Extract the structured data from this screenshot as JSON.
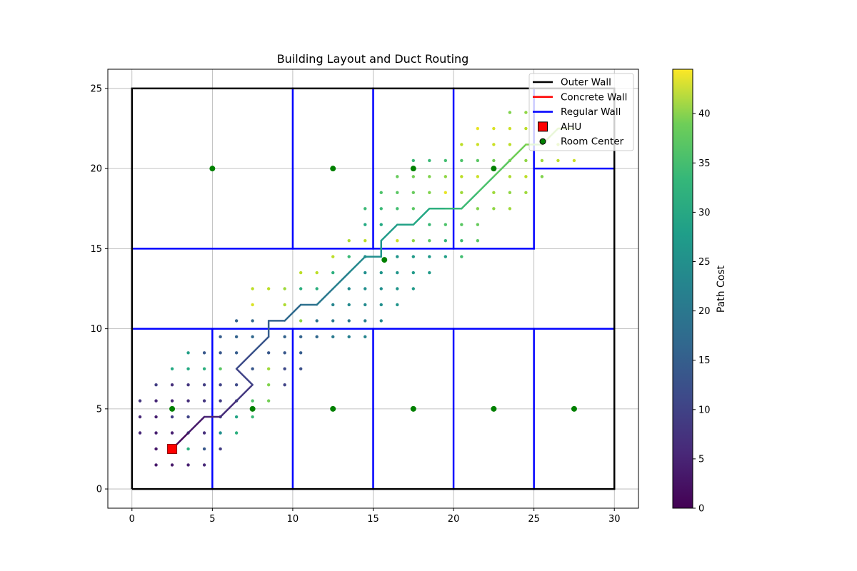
{
  "chart_data": {
    "type": "scatter",
    "title": "Building Layout and Duct Routing",
    "xlabel": "",
    "ylabel": "",
    "xlim": [
      -1.5,
      31.5
    ],
    "ylim": [
      -1.2,
      26.2
    ],
    "xticks": [
      0,
      5,
      10,
      15,
      20,
      25,
      30
    ],
    "yticks": [
      0,
      5,
      10,
      15,
      20,
      25
    ],
    "grid": true,
    "legend_position": "top-right",
    "legend": [
      {
        "label": "Outer Wall",
        "kind": "line",
        "color": "#000000"
      },
      {
        "label": "Concrete Wall",
        "kind": "line",
        "color": "#ff0000"
      },
      {
        "label": "Regular Wall",
        "kind": "line",
        "color": "#0000ff"
      },
      {
        "label": "AHU",
        "kind": "square",
        "color": "#ff0000"
      },
      {
        "label": "Room Center",
        "kind": "circle",
        "color": "#008000"
      }
    ],
    "colorbar": {
      "label": "Path Cost",
      "colormap": "viridis",
      "range": [
        0,
        44.5
      ],
      "ticks": [
        0,
        5,
        10,
        15,
        20,
        25,
        30,
        35,
        40
      ]
    },
    "outer_wall": [
      [
        0,
        0
      ],
      [
        30,
        0
      ],
      [
        30,
        25
      ],
      [
        0,
        25
      ],
      [
        0,
        0
      ]
    ],
    "regular_walls": [
      [
        [
          0,
          15
        ],
        [
          25,
          15
        ]
      ],
      [
        [
          0,
          10
        ],
        [
          30,
          10
        ]
      ],
      [
        [
          25,
          20
        ],
        [
          30,
          20
        ]
      ],
      [
        [
          10,
          15
        ],
        [
          10,
          25
        ]
      ],
      [
        [
          15,
          15
        ],
        [
          15,
          25
        ]
      ],
      [
        [
          20,
          15
        ],
        [
          20,
          25
        ]
      ],
      [
        [
          25,
          15
        ],
        [
          25,
          25
        ]
      ],
      [
        [
          5,
          0
        ],
        [
          5,
          10
        ]
      ],
      [
        [
          10,
          0
        ],
        [
          10,
          10
        ]
      ],
      [
        [
          15,
          0
        ],
        [
          15,
          10
        ]
      ],
      [
        [
          20,
          0
        ],
        [
          20,
          10
        ]
      ],
      [
        [
          25,
          0
        ],
        [
          25,
          10
        ]
      ]
    ],
    "ahu": [
      2.5,
      2.5
    ],
    "room_centers": [
      [
        5,
        20
      ],
      [
        12.5,
        20
      ],
      [
        17.5,
        20
      ],
      [
        22.5,
        20
      ],
      [
        15.7,
        14.3
      ],
      [
        2.5,
        5
      ],
      [
        7.5,
        5
      ],
      [
        12.5,
        5
      ],
      [
        17.5,
        5
      ],
      [
        22.5,
        5
      ],
      [
        27.5,
        5
      ]
    ],
    "path": [
      [
        2.5,
        2.5,
        0
      ],
      [
        3.5,
        3.5,
        2
      ],
      [
        4.5,
        4.5,
        4
      ],
      [
        5.5,
        4.5,
        5
      ],
      [
        6.5,
        5.5,
        6.5
      ],
      [
        7.5,
        6.5,
        8
      ],
      [
        6.5,
        7.5,
        9.5
      ],
      [
        7.5,
        8.5,
        11
      ],
      [
        8.5,
        9.5,
        12.5
      ],
      [
        8.5,
        10.5,
        13.5
      ],
      [
        9.5,
        10.5,
        14.5
      ],
      [
        10.5,
        11.5,
        16
      ],
      [
        11.5,
        11.5,
        17
      ],
      [
        12.5,
        12.5,
        18.5
      ],
      [
        13.5,
        13.5,
        20
      ],
      [
        14.5,
        14.5,
        21.5
      ],
      [
        15.5,
        14.5,
        22.5
      ],
      [
        15.5,
        15.5,
        23.5
      ],
      [
        16.5,
        16.5,
        25
      ],
      [
        17.5,
        16.5,
        26
      ],
      [
        18.5,
        17.5,
        27.5
      ],
      [
        19.5,
        17.5,
        28.5
      ],
      [
        20.5,
        17.5,
        29.5
      ],
      [
        21.5,
        18.5,
        31
      ],
      [
        22.5,
        19.5,
        32.5
      ],
      [
        23.5,
        20.5,
        34
      ],
      [
        24.5,
        21.5,
        35.5
      ],
      [
        25.5,
        21.5,
        36.5
      ],
      [
        26.5,
        22.5,
        38
      ],
      [
        27.5,
        22.5,
        39
      ]
    ],
    "explored": [
      [
        1.5,
        1.5,
        3
      ],
      [
        2.5,
        1.5,
        3
      ],
      [
        3.5,
        1.5,
        4
      ],
      [
        4.5,
        1.5,
        5
      ],
      [
        1.5,
        2.5,
        3
      ],
      [
        3.5,
        2.5,
        28
      ],
      [
        4.5,
        2.5,
        12
      ],
      [
        5.5,
        2.5,
        8
      ],
      [
        0.5,
        3.5,
        5
      ],
      [
        1.5,
        3.5,
        4
      ],
      [
        2.5,
        3.5,
        4
      ],
      [
        3.5,
        3.5,
        12
      ],
      [
        4.5,
        3.5,
        6
      ],
      [
        5.5,
        3.5,
        22
      ],
      [
        6.5,
        3.5,
        28
      ],
      [
        0.5,
        4.5,
        5
      ],
      [
        1.5,
        4.5,
        4
      ],
      [
        2.5,
        4.5,
        8
      ],
      [
        3.5,
        4.5,
        9
      ],
      [
        5.5,
        4.5,
        10
      ],
      [
        6.5,
        4.5,
        26
      ],
      [
        7.5,
        4.5,
        30
      ],
      [
        0.5,
        5.5,
        7
      ],
      [
        1.5,
        5.5,
        5
      ],
      [
        2.5,
        5.5,
        5
      ],
      [
        3.5,
        5.5,
        6
      ],
      [
        4.5,
        5.5,
        7
      ],
      [
        5.5,
        5.5,
        8
      ],
      [
        6.5,
        5.5,
        10
      ],
      [
        7.5,
        5.5,
        32
      ],
      [
        8.5,
        5.5,
        35
      ],
      [
        1.5,
        6.5,
        8
      ],
      [
        2.5,
        6.5,
        6
      ],
      [
        3.5,
        6.5,
        7
      ],
      [
        4.5,
        6.5,
        8
      ],
      [
        5.5,
        6.5,
        9
      ],
      [
        6.5,
        6.5,
        10
      ],
      [
        8.5,
        6.5,
        36
      ],
      [
        9.5,
        6.5,
        9
      ],
      [
        2.5,
        7.5,
        27
      ],
      [
        3.5,
        7.5,
        27
      ],
      [
        4.5,
        7.5,
        28
      ],
      [
        5.5,
        7.5,
        33
      ],
      [
        7.5,
        7.5,
        12
      ],
      [
        8.5,
        7.5,
        38
      ],
      [
        9.5,
        7.5,
        10
      ],
      [
        10.5,
        7.5,
        11
      ],
      [
        3.5,
        8.5,
        25
      ],
      [
        4.5,
        8.5,
        12
      ],
      [
        5.5,
        8.5,
        12
      ],
      [
        6.5,
        8.5,
        13
      ],
      [
        8.5,
        8.5,
        12
      ],
      [
        9.5,
        8.5,
        12
      ],
      [
        10.5,
        8.5,
        13
      ],
      [
        5.5,
        9.5,
        13
      ],
      [
        6.5,
        9.5,
        14
      ],
      [
        7.5,
        9.5,
        15
      ],
      [
        9.5,
        9.5,
        14
      ],
      [
        10.5,
        9.5,
        14
      ],
      [
        11.5,
        9.5,
        15
      ],
      [
        12.5,
        9.5,
        18
      ],
      [
        13.5,
        9.5,
        19
      ],
      [
        14.5,
        9.5,
        20
      ],
      [
        6.5,
        10.5,
        14
      ],
      [
        7.5,
        10.5,
        15
      ],
      [
        10.5,
        10.5,
        37
      ],
      [
        11.5,
        10.5,
        17
      ],
      [
        12.5,
        10.5,
        18
      ],
      [
        13.5,
        10.5,
        18
      ],
      [
        14.5,
        10.5,
        19
      ],
      [
        15.5,
        10.5,
        21
      ],
      [
        7.5,
        11.5,
        42
      ],
      [
        9.5,
        11.5,
        39
      ],
      [
        12.5,
        11.5,
        20
      ],
      [
        13.5,
        11.5,
        21
      ],
      [
        14.5,
        11.5,
        21
      ],
      [
        15.5,
        11.5,
        22
      ],
      [
        16.5,
        11.5,
        23
      ],
      [
        7.5,
        12.5,
        40
      ],
      [
        8.5,
        12.5,
        40
      ],
      [
        9.5,
        12.5,
        38
      ],
      [
        10.5,
        12.5,
        28
      ],
      [
        11.5,
        12.5,
        28
      ],
      [
        13.5,
        12.5,
        21
      ],
      [
        14.5,
        12.5,
        22
      ],
      [
        15.5,
        12.5,
        22
      ],
      [
        16.5,
        12.5,
        23
      ],
      [
        17.5,
        12.5,
        24
      ],
      [
        10.5,
        13.5,
        40
      ],
      [
        11.5,
        13.5,
        40
      ],
      [
        12.5,
        13.5,
        28
      ],
      [
        14.5,
        13.5,
        22
      ],
      [
        15.5,
        13.5,
        23
      ],
      [
        16.5,
        13.5,
        23
      ],
      [
        17.5,
        13.5,
        24
      ],
      [
        18.5,
        13.5,
        24
      ],
      [
        12.5,
        14.5,
        40
      ],
      [
        13.5,
        14.5,
        30
      ],
      [
        14.5,
        14.5,
        23
      ],
      [
        16.5,
        14.5,
        23
      ],
      [
        17.5,
        14.5,
        24
      ],
      [
        18.5,
        14.5,
        24
      ],
      [
        19.5,
        14.5,
        25
      ],
      [
        20.5,
        14.5,
        31
      ],
      [
        13.5,
        15.5,
        39
      ],
      [
        14.5,
        15.5,
        40
      ],
      [
        16.5,
        15.5,
        41
      ],
      [
        17.5,
        15.5,
        37
      ],
      [
        18.5,
        15.5,
        33
      ],
      [
        19.5,
        15.5,
        29
      ],
      [
        20.5,
        15.5,
        31
      ],
      [
        21.5,
        15.5,
        33
      ],
      [
        14.5,
        16.5,
        27
      ],
      [
        15.5,
        16.5,
        27
      ],
      [
        18.5,
        16.5,
        30
      ],
      [
        19.5,
        16.5,
        32
      ],
      [
        20.5,
        16.5,
        33
      ],
      [
        21.5,
        16.5,
        34
      ],
      [
        14.5,
        17.5,
        30
      ],
      [
        15.5,
        17.5,
        30
      ],
      [
        16.5,
        17.5,
        31
      ],
      [
        17.5,
        17.5,
        33
      ],
      [
        21.5,
        17.5,
        36
      ],
      [
        22.5,
        17.5,
        37
      ],
      [
        23.5,
        17.5,
        38
      ],
      [
        15.5,
        18.5,
        32
      ],
      [
        16.5,
        18.5,
        33
      ],
      [
        17.5,
        18.5,
        34
      ],
      [
        18.5,
        18.5,
        36
      ],
      [
        19.5,
        18.5,
        43
      ],
      [
        20.5,
        18.5,
        38
      ],
      [
        22.5,
        18.5,
        38
      ],
      [
        23.5,
        18.5,
        37
      ],
      [
        24.5,
        18.5,
        38
      ],
      [
        16.5,
        19.5,
        34
      ],
      [
        17.5,
        19.5,
        35
      ],
      [
        18.5,
        19.5,
        36
      ],
      [
        19.5,
        19.5,
        37
      ],
      [
        20.5,
        19.5,
        40
      ],
      [
        21.5,
        19.5,
        41
      ],
      [
        23.5,
        19.5,
        39
      ],
      [
        24.5,
        19.5,
        40
      ],
      [
        25.5,
        19.5,
        36
      ],
      [
        17.5,
        20.5,
        30
      ],
      [
        18.5,
        20.5,
        30
      ],
      [
        19.5,
        20.5,
        31
      ],
      [
        20.5,
        20.5,
        32
      ],
      [
        21.5,
        20.5,
        33
      ],
      [
        22.5,
        20.5,
        35
      ],
      [
        23.5,
        20.5,
        36
      ],
      [
        24.5,
        20.5,
        37
      ],
      [
        25.5,
        20.5,
        38
      ],
      [
        26.5,
        20.5,
        40
      ],
      [
        27.5,
        20.5,
        41
      ],
      [
        20.5,
        21.5,
        40
      ],
      [
        21.5,
        21.5,
        41
      ],
      [
        22.5,
        21.5,
        41
      ],
      [
        23.5,
        21.5,
        40
      ],
      [
        25.5,
        21.5,
        37
      ],
      [
        26.5,
        21.5,
        39
      ],
      [
        21.5,
        22.5,
        43
      ],
      [
        22.5,
        22.5,
        42
      ],
      [
        23.5,
        22.5,
        41
      ],
      [
        24.5,
        22.5,
        40
      ],
      [
        23.5,
        23.5,
        36
      ],
      [
        24.5,
        23.5,
        37
      ]
    ]
  }
}
